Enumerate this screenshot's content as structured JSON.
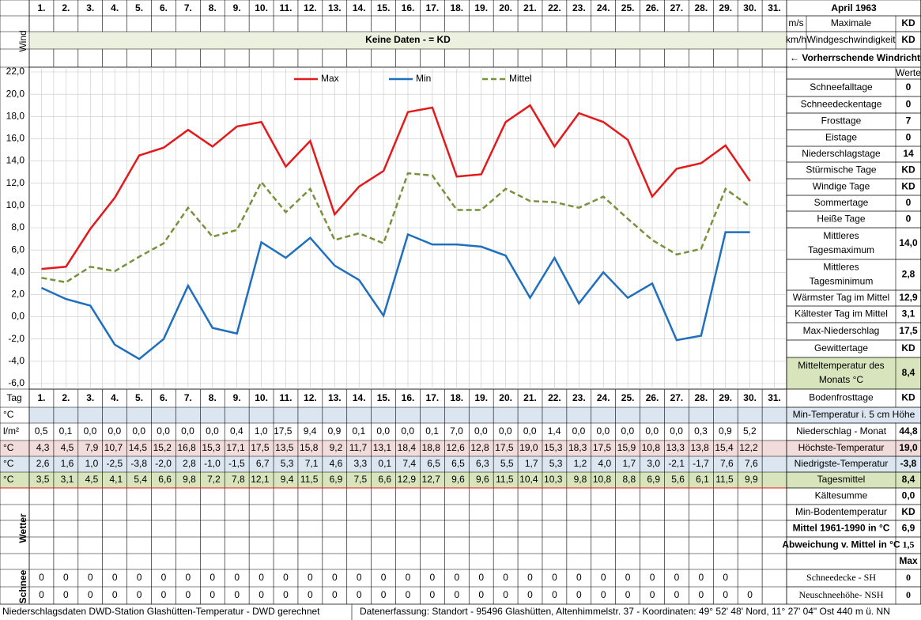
{
  "chart_data": {
    "type": "line",
    "legend": "top",
    "categories": [
      "1.",
      "2.",
      "3.",
      "4.",
      "5.",
      "6.",
      "7.",
      "8.",
      "9.",
      "10.",
      "11.",
      "12.",
      "13.",
      "14.",
      "15.",
      "16.",
      "17.",
      "18.",
      "19.",
      "20.",
      "21.",
      "22.",
      "23.",
      "24.",
      "25.",
      "26.",
      "27.",
      "28.",
      "29.",
      "30.",
      "31."
    ],
    "ylim": [
      -6,
      22
    ],
    "yticks": [
      {
        "value": -6,
        "label": "-6,0"
      },
      {
        "value": -4,
        "label": "-4,0"
      },
      {
        "value": -2,
        "label": "-2,0"
      },
      {
        "value": 0,
        "label": "0,0"
      },
      {
        "value": 2,
        "label": "2,0"
      },
      {
        "value": 4,
        "label": "4,0"
      },
      {
        "value": 6,
        "label": "6,0"
      },
      {
        "value": 8,
        "label": "8,0"
      },
      {
        "value": 10,
        "label": "10,0"
      },
      {
        "value": 12,
        "label": "12,0"
      },
      {
        "value": 14,
        "label": "14,0"
      },
      {
        "value": 16,
        "label": "16,0"
      },
      {
        "value": 18,
        "label": "18,0"
      },
      {
        "value": 20,
        "label": "20,0"
      },
      {
        "value": 22,
        "label": "22,0"
      }
    ],
    "grid": true,
    "series": [
      {
        "name": "Max",
        "color": "#e31a1c",
        "dash": false,
        "values": [
          4.3,
          4.5,
          7.9,
          10.7,
          14.5,
          15.2,
          16.8,
          15.3,
          17.1,
          17.5,
          13.5,
          15.8,
          9.2,
          11.7,
          13.1,
          18.4,
          18.8,
          12.6,
          12.8,
          17.5,
          19.0,
          15.3,
          18.3,
          17.5,
          15.9,
          10.8,
          13.3,
          13.8,
          15.4,
          12.2,
          null
        ],
        "value_labels": [
          "4,3",
          "4,5",
          "7,9",
          "10,7",
          "14,5",
          "15,2",
          "16,8",
          "15,3",
          "17,1",
          "17,5",
          "13,5",
          "15,8",
          "9,2",
          "11,7",
          "13,1",
          "18,4",
          "18,8",
          "12,6",
          "12,8",
          "17,5",
          "19,0",
          "15,3",
          "18,3",
          "17,5",
          "15,9",
          "10,8",
          "13,3",
          "13,8",
          "15,4",
          "12,2",
          null
        ]
      },
      {
        "name": "Min",
        "color": "#1f6fbf",
        "dash": false,
        "values": [
          2.6,
          1.6,
          1.0,
          -2.5,
          -3.8,
          -2.0,
          2.8,
          -1.0,
          -1.5,
          6.7,
          5.3,
          7.1,
          4.6,
          3.3,
          0.1,
          7.4,
          6.5,
          6.5,
          6.3,
          5.5,
          1.7,
          5.3,
          1.2,
          4.0,
          1.7,
          3.0,
          -2.1,
          -1.7,
          7.6,
          7.6,
          null
        ],
        "value_labels": [
          "2,6",
          "1,6",
          "1,0",
          "-2,5",
          "-3,8",
          "-2,0",
          "2,8",
          "-1,0",
          "-1,5",
          "6,7",
          "5,3",
          "7,1",
          "4,6",
          "3,3",
          "0,1",
          "7,4",
          "6,5",
          "6,5",
          "6,3",
          "5,5",
          "1,7",
          "5,3",
          "1,2",
          "4,0",
          "1,7",
          "3,0",
          "-2,1",
          "-1,7",
          "7,6",
          "7,6",
          null
        ]
      },
      {
        "name": "Mittel",
        "color": "#76923c",
        "dash": true,
        "values": [
          3.5,
          3.1,
          4.5,
          4.1,
          5.4,
          6.6,
          9.8,
          7.2,
          7.8,
          12.1,
          9.4,
          11.5,
          6.9,
          7.5,
          6.6,
          12.9,
          12.7,
          9.6,
          9.6,
          11.5,
          10.4,
          10.3,
          9.8,
          10.8,
          8.8,
          6.9,
          5.6,
          6.1,
          11.5,
          9.9,
          null
        ],
        "value_labels": [
          "3,5",
          "3,1",
          "4,5",
          "4,1",
          "5,4",
          "6,6",
          "9,8",
          "7,2",
          "7,8",
          "12,1",
          "9,4",
          "11,5",
          "6,9",
          "7,5",
          "6,6",
          "12,9",
          "12,7",
          "9,6",
          "9,6",
          "11,5",
          "10,4",
          "10,3",
          "9,8",
          "10,8",
          "8,8",
          "6,9",
          "5,6",
          "6,1",
          "11,5",
          "9,9",
          null
        ]
      }
    ]
  },
  "left": {
    "wind": "Wind",
    "tag": "Tag",
    "weather": "Wetter",
    "snow": "Schnee",
    "units": [
      "°C",
      "l/m²",
      "°C",
      "°C",
      "°C"
    ]
  },
  "wind": {
    "no_data": "Keine Daten -  = KD"
  },
  "precipitation": [
    "0,5",
    "0,1",
    "0,0",
    "0,0",
    "0,0",
    "0,0",
    "0,0",
    "0,0",
    "0,4",
    "1,0",
    "17,5",
    "9,4",
    "0,9",
    "0,1",
    "0,0",
    "0,0",
    "0,1",
    "7,0",
    "0,0",
    "0,0",
    "0,0",
    "1,4",
    "0,0",
    "0,0",
    "0,0",
    "0,0",
    "0,0",
    "0,3",
    "0,9",
    "5,2",
    null
  ],
  "snow_rows": [
    [
      0,
      0,
      0,
      0,
      0,
      0,
      0,
      0,
      0,
      0,
      0,
      0,
      0,
      0,
      0,
      0,
      0,
      0,
      0,
      0,
      0,
      0,
      0,
      0,
      0,
      0,
      0,
      0,
      0,
      null,
      null
    ],
    [
      0,
      0,
      0,
      0,
      0,
      0,
      0,
      0,
      0,
      0,
      0,
      0,
      0,
      0,
      0,
      0,
      0,
      0,
      0,
      0,
      0,
      0,
      0,
      0,
      0,
      0,
      0,
      0,
      0,
      0,
      null
    ]
  ],
  "panel": {
    "title": "April 1963",
    "units": [
      "m/s",
      "km/h"
    ],
    "wind_label": [
      "Maximale",
      "Windgeschwindigkeit"
    ],
    "wind_values": [
      "KD",
      "KD"
    ],
    "direction": "← Vorherrschende Windrichtung",
    "werte": "Werte",
    "stats": [
      {
        "label": [
          "Schneefalltage"
        ],
        "value": "0"
      },
      {
        "label": [
          "Schneedeckentage"
        ],
        "value": "0"
      },
      {
        "label": [
          "Frosttage"
        ],
        "value": "7"
      },
      {
        "label": [
          "Eistage"
        ],
        "value": "0"
      },
      {
        "label": [
          "Niederschlagstage"
        ],
        "value": "14"
      },
      {
        "label": [
          "Stürmische Tage"
        ],
        "value": "KD"
      },
      {
        "label": [
          "Windige Tage"
        ],
        "value": "KD"
      },
      {
        "label": [
          "Sommertage"
        ],
        "value": "0"
      },
      {
        "label": [
          "Heiße Tage"
        ],
        "value": "0"
      },
      {
        "label": [
          "Mittleres",
          "Tagesmaximum"
        ],
        "value": "14,0"
      },
      {
        "label": [
          "Mittleres",
          "Tagesminimum"
        ],
        "value": "2,8"
      },
      {
        "label": [
          "Wärmster Tag im Mittel"
        ],
        "value": "12,9"
      },
      {
        "label": [
          "Kältester Tag im Mittel"
        ],
        "value": "3,1"
      },
      {
        "label": [
          "Max-Niederschlag"
        ],
        "value": "17,5"
      },
      {
        "label": [
          "Gewittertage"
        ],
        "value": "KD"
      },
      {
        "label": [
          "Mitteltemperatur des",
          "Monats °C"
        ],
        "value": "8,4"
      },
      {
        "label": [
          "Bodenfrosttage"
        ],
        "value": "KD"
      }
    ],
    "min5cm": "Min-Temperatur i. 5 cm Höhe",
    "summary": [
      {
        "label": "Niederschlag - Monat",
        "value": "44,8"
      },
      {
        "label": "Höchste-Temperatur",
        "value": "19,0"
      },
      {
        "label": "Niedrigste-Temperatur",
        "value": "-3,8"
      },
      {
        "label": "Tagesmittel",
        "value": "8,4"
      },
      {
        "label": "Kältesumme",
        "value": "0,0"
      },
      {
        "label": "Min-Bodentemperatur",
        "value": "KD"
      },
      {
        "label": "Mittel 1961-1990 in °C",
        "value": "6,9"
      },
      {
        "label": "Abweichung v. Mittel in °C",
        "value": "1,5"
      },
      {
        "value": "Max"
      },
      {
        "label": "Schneedecke -  SH",
        "value": "0"
      },
      {
        "label": "Neuschneehöhe- NSH",
        "value": "0"
      }
    ]
  },
  "footer": {
    "left": "Niederschlagsdaten DWD-Station Glashütten-Temperatur -  DWD gerechnet",
    "right": "Datenerfassung: Standort -  95496  Glashütten, Altenhimmelstr. 37 - Koordinaten:  49° 52' 48' Nord,   11° 27' 04\" Ost   440 m ü. NN"
  }
}
